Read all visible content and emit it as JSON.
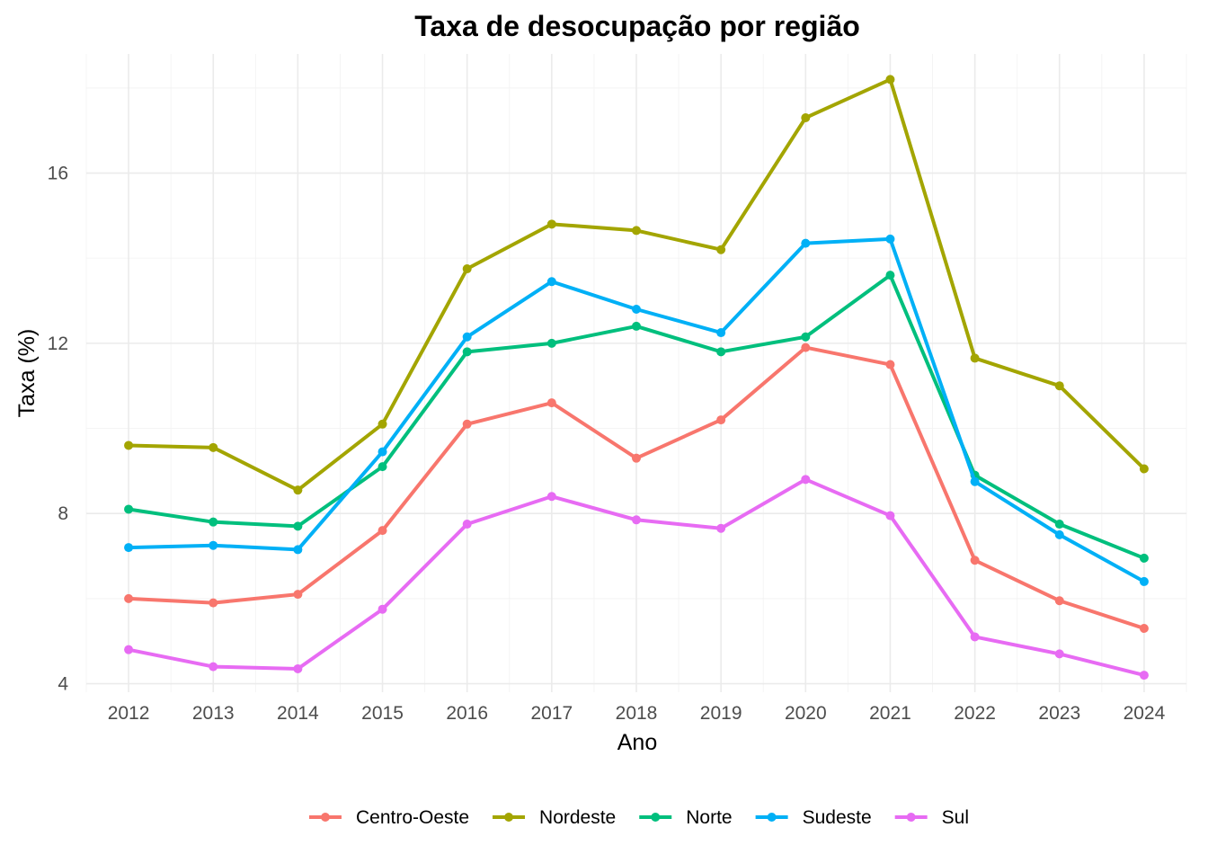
{
  "chart_data": {
    "type": "line",
    "title": "Taxa de desocupação por região",
    "xlabel": "Ano",
    "ylabel": "Taxa (%)",
    "x": [
      2012,
      2013,
      2014,
      2015,
      2016,
      2017,
      2018,
      2019,
      2020,
      2021,
      2022,
      2023,
      2024
    ],
    "xlim": [
      2011.5,
      2024.5
    ],
    "ylim": [
      3.8,
      18.8
    ],
    "yticks": [
      4,
      8,
      12,
      16
    ],
    "grid": true,
    "legend_position": "bottom",
    "series": [
      {
        "name": "Centro-Oeste",
        "color": "#F8766D",
        "values": [
          6.0,
          5.9,
          6.1,
          7.6,
          10.1,
          10.6,
          9.3,
          10.2,
          11.9,
          11.5,
          6.9,
          5.95,
          5.3
        ]
      },
      {
        "name": "Nordeste",
        "color": "#A3A500",
        "values": [
          9.6,
          9.55,
          8.55,
          10.1,
          13.75,
          14.8,
          14.65,
          14.2,
          17.3,
          18.2,
          11.65,
          11.0,
          9.05
        ]
      },
      {
        "name": "Norte",
        "color": "#00BF7D",
        "values": [
          8.1,
          7.8,
          7.7,
          9.1,
          11.8,
          12.0,
          12.4,
          11.8,
          12.15,
          13.6,
          8.9,
          7.75,
          6.95
        ]
      },
      {
        "name": "Sudeste",
        "color": "#00B0F6",
        "values": [
          7.2,
          7.25,
          7.15,
          9.45,
          12.15,
          13.45,
          12.8,
          12.25,
          14.35,
          14.45,
          8.75,
          7.5,
          6.4
        ]
      },
      {
        "name": "Sul",
        "color": "#E76BF3",
        "values": [
          4.8,
          4.4,
          4.35,
          5.75,
          7.75,
          8.4,
          7.85,
          7.65,
          8.8,
          7.95,
          5.1,
          4.7,
          4.2
        ]
      }
    ]
  }
}
